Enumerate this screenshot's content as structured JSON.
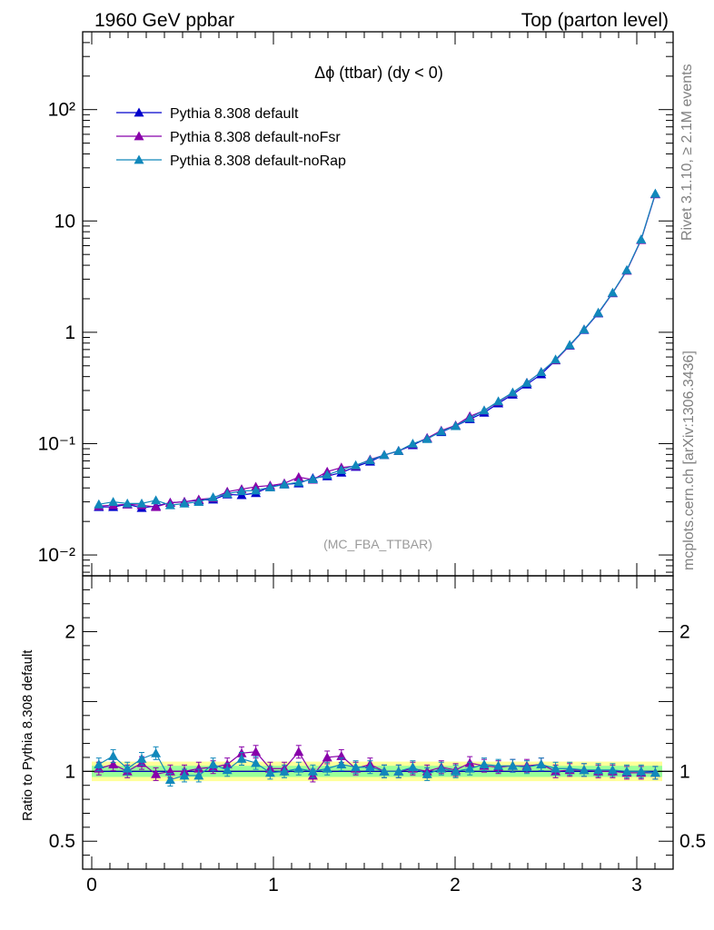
{
  "header": {
    "left": "1960 GeV ppbar",
    "right": "Top (parton level)"
  },
  "side_labels": {
    "rivet": "Rivet 3.1.10, ≥ 2.1M events",
    "mcplots": "mcplots.cern.ch [arXiv:1306.3436]"
  },
  "chart_data": [
    {
      "type": "line",
      "title": "Δϕ (ttbar) (dy < 0)",
      "watermark": "(MC_FBA_TTBAR)",
      "yscale": "log",
      "ylim": [
        0.0065,
        500
      ],
      "xlim": [
        -0.05,
        3.2
      ],
      "yticks": [
        {
          "value": 0.01,
          "label": "10⁻²"
        },
        {
          "value": 0.1,
          "label": "10⁻¹"
        },
        {
          "value": 1,
          "label": "1"
        },
        {
          "value": 10,
          "label": "10"
        },
        {
          "value": 100,
          "label": "10²"
        }
      ],
      "legend_position": "top-left",
      "x": [
        0.039,
        0.118,
        0.196,
        0.275,
        0.353,
        0.432,
        0.51,
        0.589,
        0.668,
        0.746,
        0.825,
        0.903,
        0.982,
        1.06,
        1.139,
        1.217,
        1.296,
        1.374,
        1.453,
        1.532,
        1.61,
        1.689,
        1.767,
        1.846,
        1.924,
        2.003,
        2.081,
        2.16,
        2.238,
        2.317,
        2.395,
        2.474,
        2.553,
        2.631,
        2.71,
        2.788,
        2.867,
        2.945,
        3.024,
        3.102
      ],
      "series": [
        {
          "name": "Pythia 8.308 default",
          "color": "#0000cc",
          "values": [
            0.027,
            0.027,
            0.0285,
            0.0265,
            0.0275,
            0.0295,
            0.03,
            0.031,
            0.0315,
            0.035,
            0.0345,
            0.036,
            0.041,
            0.043,
            0.044,
            0.049,
            0.051,
            0.055,
            0.062,
            0.069,
            0.079,
            0.086,
            0.097,
            0.112,
            0.127,
            0.144,
            0.166,
            0.19,
            0.23,
            0.276,
            0.34,
            0.42,
            0.56,
            0.76,
            1.05,
            1.48,
            2.25,
            3.6,
            6.8,
            17.5
          ]
        },
        {
          "name": "Pythia 8.308 default-noFsr",
          "color": "#8800aa",
          "values": [
            0.0275,
            0.028,
            0.0285,
            0.028,
            0.027,
            0.0295,
            0.03,
            0.0315,
            0.0325,
            0.037,
            0.039,
            0.041,
            0.042,
            0.044,
            0.05,
            0.0475,
            0.056,
            0.061,
            0.063,
            0.072,
            0.079,
            0.086,
            0.099,
            0.112,
            0.131,
            0.146,
            0.176,
            0.198,
            0.238,
            0.286,
            0.353,
            0.44,
            0.562,
            0.764,
            1.06,
            1.49,
            2.25,
            3.58,
            6.75,
            17.4
          ]
        },
        {
          "name": "Pythia 8.308 default-noRap",
          "color": "#1188bb",
          "values": [
            0.0285,
            0.03,
            0.029,
            0.029,
            0.031,
            0.028,
            0.029,
            0.03,
            0.033,
            0.0355,
            0.0375,
            0.038,
            0.0405,
            0.043,
            0.045,
            0.048,
            0.0525,
            0.058,
            0.064,
            0.071,
            0.079,
            0.086,
            0.1,
            0.11,
            0.129,
            0.144,
            0.17,
            0.199,
            0.24,
            0.288,
            0.352,
            0.44,
            0.57,
            0.77,
            1.06,
            1.5,
            2.27,
            3.62,
            6.83,
            17.6
          ]
        }
      ]
    },
    {
      "type": "line",
      "ylabel": "Ratio to Pythia 8.308 default",
      "ylim": [
        0.3,
        2.4
      ],
      "xlim": [
        -0.05,
        3.2
      ],
      "yticks": [
        0.5,
        1,
        2
      ],
      "xticks": [
        0,
        1,
        2,
        3
      ],
      "band_outer": [
        0.93,
        1.07
      ],
      "band_inner": [
        0.96,
        1.04
      ],
      "series": [
        {
          "name": "Pythia 8.308 default",
          "color": "#0000cc",
          "values": [
            1,
            1,
            1,
            1,
            1,
            1,
            1,
            1,
            1,
            1,
            1,
            1,
            1,
            1,
            1,
            1,
            1,
            1,
            1,
            1,
            1,
            1,
            1,
            1,
            1,
            1,
            1,
            1,
            1,
            1,
            1,
            1,
            1,
            1,
            1,
            1,
            1,
            1,
            1,
            1
          ]
        },
        {
          "name": "Pythia 8.308 default-noFsr",
          "color": "#8800aa",
          "values": [
            1.02,
            1.05,
            1.0,
            1.06,
            0.98,
            1.0,
            1.0,
            1.02,
            1.03,
            1.05,
            1.13,
            1.14,
            1.02,
            1.02,
            1.14,
            0.97,
            1.1,
            1.11,
            1.02,
            1.05,
            1.0,
            1.0,
            1.02,
            1.0,
            1.03,
            1.01,
            1.06,
            1.04,
            1.03,
            1.04,
            1.04,
            1.05,
            1.0,
            1.01,
            1.01,
            1.0,
            1.0,
            0.99,
            0.99,
            0.99
          ]
        },
        {
          "name": "Pythia 8.308 default-noRap",
          "color": "#1188bb",
          "values": [
            1.05,
            1.11,
            1.02,
            1.09,
            1.13,
            0.94,
            0.97,
            0.97,
            1.05,
            1.01,
            1.09,
            1.06,
            0.99,
            1.0,
            1.02,
            1.0,
            1.02,
            1.05,
            1.03,
            1.03,
            1.0,
            1.0,
            1.03,
            0.98,
            1.02,
            1.0,
            1.02,
            1.05,
            1.04,
            1.04,
            1.03,
            1.05,
            1.02,
            1.02,
            1.01,
            1.01,
            1.01,
            1.0,
            1.0,
            0.99
          ]
        }
      ]
    }
  ]
}
